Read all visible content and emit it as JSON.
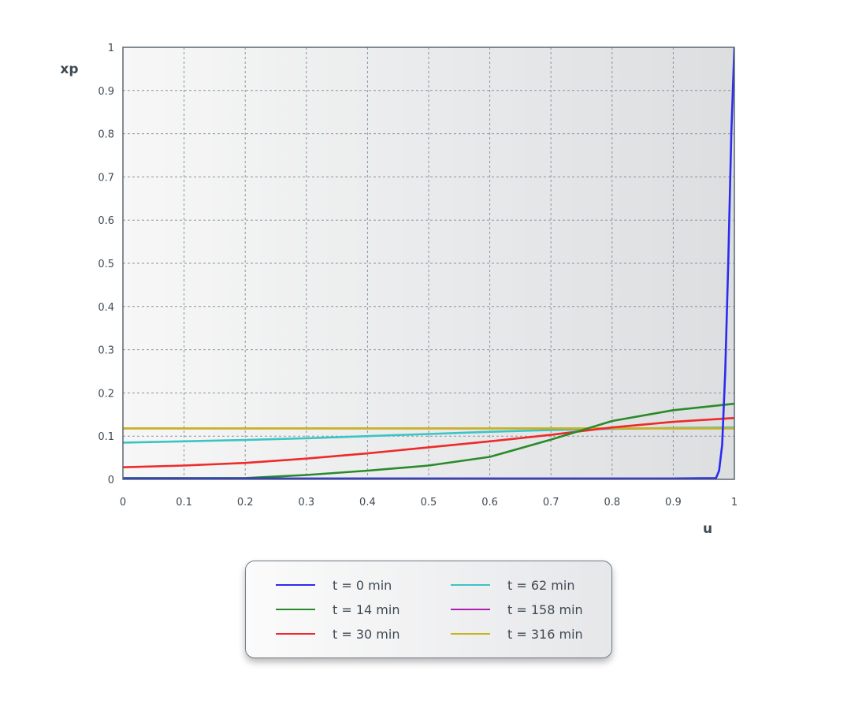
{
  "chart_data": {
    "type": "line",
    "title": "",
    "xlabel": "u",
    "ylabel": "xp",
    "xlim": [
      0,
      1
    ],
    "ylim": [
      0,
      1
    ],
    "xticks": [
      "0",
      "0.1",
      "0.2",
      "0.3",
      "0.4",
      "0.5",
      "0.6",
      "0.7",
      "0.8",
      "0.9",
      "1"
    ],
    "yticks": [
      "0",
      "0.1",
      "0.2",
      "0.3",
      "0.4",
      "0.5",
      "0.6",
      "0.7",
      "0.8",
      "0.9",
      "1"
    ],
    "grid": true,
    "legend_position": "bottom",
    "series": [
      {
        "name": "t = 0 min",
        "color": "#2b2bf0",
        "x": [
          0,
          0.1,
          0.2,
          0.3,
          0.4,
          0.5,
          0.6,
          0.7,
          0.8,
          0.9,
          0.97,
          0.975,
          0.98,
          0.985,
          0.99,
          0.995,
          1.0
        ],
        "y": [
          0.002,
          0.002,
          0.002,
          0.002,
          0.002,
          0.002,
          0.002,
          0.002,
          0.002,
          0.002,
          0.003,
          0.02,
          0.08,
          0.25,
          0.5,
          0.8,
          1.0
        ]
      },
      {
        "name": "t = 14 min",
        "color": "#2a8a2a",
        "x": [
          0,
          0.1,
          0.2,
          0.3,
          0.4,
          0.5,
          0.6,
          0.7,
          0.8,
          0.9,
          1.0
        ],
        "y": [
          0.003,
          0.003,
          0.003,
          0.01,
          0.02,
          0.032,
          0.052,
          0.092,
          0.135,
          0.16,
          0.175
        ]
      },
      {
        "name": "t = 30 min",
        "color": "#ee2a2a",
        "x": [
          0,
          0.1,
          0.2,
          0.3,
          0.4,
          0.5,
          0.6,
          0.7,
          0.8,
          0.9,
          1.0
        ],
        "y": [
          0.028,
          0.032,
          0.038,
          0.048,
          0.06,
          0.074,
          0.088,
          0.103,
          0.12,
          0.133,
          0.142
        ]
      },
      {
        "name": "t = 62 min",
        "color": "#3cc4c4",
        "x": [
          0,
          0.1,
          0.2,
          0.3,
          0.4,
          0.5,
          0.6,
          0.7,
          0.8,
          0.9,
          1.0
        ],
        "y": [
          0.085,
          0.088,
          0.091,
          0.095,
          0.1,
          0.105,
          0.11,
          0.114,
          0.117,
          0.119,
          0.12
        ]
      },
      {
        "name": "t = 158 min",
        "color": "#b020b0",
        "x": [
          0,
          0.5,
          1.0
        ],
        "y": [
          0.118,
          0.118,
          0.118
        ]
      },
      {
        "name": "t = 316 min",
        "color": "#c8b41e",
        "x": [
          0,
          0.5,
          1.0
        ],
        "y": [
          0.118,
          0.118,
          0.118
        ]
      }
    ]
  }
}
